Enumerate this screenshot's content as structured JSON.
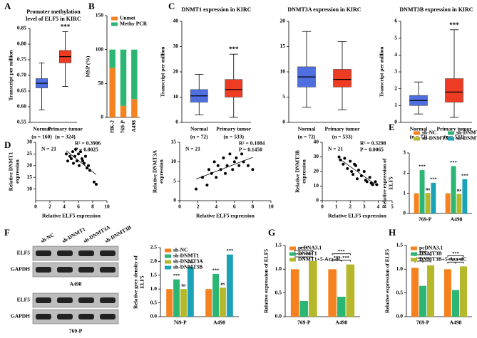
{
  "blots": {
    "panel": "F",
    "lanes": [
      "sh-NC",
      "sh-DNMT1",
      "sh-DNMT3A",
      "sh-DNMT3B"
    ],
    "rows": [
      "ELF5",
      "GAPDH"
    ],
    "cell_lines": [
      "A498",
      "769-P"
    ]
  },
  "chart_data": [
    {
      "panel": "A",
      "type": "box",
      "title": [
        "Promoter methylation",
        "level of ELF5 in KIRC"
      ],
      "ylabel": "Transcript per million",
      "categories": [
        "Normal",
        "Primary tumor"
      ],
      "category_notes": [
        "(n = 160)",
        "(n = 324)"
      ],
      "colors": [
        "#4f6fe0",
        "#ee3b24"
      ],
      "stats": [
        [
          0.59,
          0.66,
          0.675,
          0.69,
          0.74
        ],
        [
          0.665,
          0.74,
          0.76,
          0.78,
          0.84
        ]
      ],
      "annotation": "***",
      "ylim": [
        0.55,
        0.85
      ],
      "yticks": [
        0.55,
        {
          "value": 0.6,
          "label": "0.60"
        },
        0.65,
        {
          "value": 0.7,
          "label": "0.70"
        },
        0.75,
        {
          "value": 0.8,
          "label": "0.80"
        },
        0.85
      ]
    },
    {
      "panel": "B",
      "type": "stacked",
      "ylabel": "MSP (%)",
      "categories": [
        "HK-2",
        "769-P",
        "A498"
      ],
      "legend": "top",
      "series": [
        {
          "name": "Unmet",
          "color": "#f5821f",
          "values": [
            73,
            17,
            27
          ]
        },
        {
          "name": "Methy PCR",
          "color": "#2bb673",
          "values": [
            27,
            83,
            73
          ]
        }
      ],
      "ylim": [
        0,
        150
      ],
      "yticks": [
        0,
        50,
        100,
        150
      ]
    },
    {
      "panel": "C",
      "type": "box",
      "title": "DNMT1 expression in KIRC",
      "ylabel": "Transcript per million",
      "categories": [
        "Normal",
        "Primary tumor"
      ],
      "category_notes": [
        "(n = 72)",
        "(n = 533)"
      ],
      "colors": [
        "#4f6fe0",
        "#ee3b24"
      ],
      "stats": [
        [
          3,
          8,
          10.5,
          13,
          19
        ],
        [
          2,
          10,
          13,
          17,
          27
        ]
      ],
      "annotation": "***",
      "ylim": [
        0,
        40
      ],
      "yticks": [
        0,
        10,
        20,
        30,
        40
      ]
    },
    {
      "type": "box",
      "title": "DNMT3A expression in KIRC",
      "categories": [
        "Normal",
        "Primary tumor"
      ],
      "category_notes": [
        "(n = 72)",
        "(n = 533)"
      ],
      "colors": [
        "#4f6fe0",
        "#ee3b24"
      ],
      "stats": [
        [
          3,
          7,
          9,
          11,
          18
        ],
        [
          2.5,
          7,
          8.5,
          10.5,
          16
        ]
      ],
      "ylim": [
        0,
        20
      ],
      "yticks": [
        0,
        5,
        10,
        15,
        20
      ]
    },
    {
      "type": "box",
      "title": "DNMT3B expression in KIRC",
      "ylabel": "Transcript per million",
      "categories": [
        "Normal",
        "Primary tumor"
      ],
      "category_notes": [
        "(n = 72)",
        "(n = 533)"
      ],
      "colors": [
        "#4f6fe0",
        "#ee3b24"
      ],
      "stats": [
        [
          0.5,
          1.0,
          1.3,
          1.6,
          2.4
        ],
        [
          0.3,
          1.2,
          1.8,
          2.6,
          5.5
        ]
      ],
      "annotation": "***",
      "ylim": [
        0,
        6
      ],
      "yticks": [
        0,
        1,
        2,
        3,
        4,
        5,
        6
      ]
    },
    {
      "panel": "D",
      "type": "scatter",
      "ylabel": [
        "Relative DNMT1",
        "expression"
      ],
      "xlabel": "Relative ELF5 expression",
      "annotations": [
        "N = 21",
        "R² = 0.3906",
        "P = 0.0025"
      ],
      "x": [
        4.3,
        4.5,
        4.8,
        5.0,
        5.2,
        5.3,
        5.5,
        5.6,
        5.8,
        6.0,
        6.1,
        6.3,
        6.5,
        6.6,
        6.8,
        7.0,
        7.2,
        7.4,
        7.6,
        8.2,
        8.5
      ],
      "y": [
        25,
        22,
        24,
        23,
        26,
        21,
        24,
        27,
        22,
        25,
        20,
        26,
        23,
        22,
        21,
        24,
        19,
        20,
        18,
        13,
        12
      ],
      "xlim": [
        0,
        10
      ],
      "xticks": [
        0,
        2,
        4,
        6,
        8,
        10
      ],
      "ylim": [
        5,
        30
      ],
      "yticks": [
        10,
        15,
        20,
        25,
        30
      ]
    },
    {
      "type": "scatter",
      "ylabel": [
        "Relative DNMT3A",
        "expression"
      ],
      "xlabel": "Relative ELF5 expression",
      "annotations": [
        "N = 21",
        "R² = 0.1084",
        "P = 0.1450"
      ],
      "x": [
        1.8,
        2.5,
        3.0,
        3.2,
        3.5,
        3.8,
        4.0,
        4.2,
        4.5,
        4.8,
        5.0,
        5.2,
        5.5,
        5.8,
        6.0,
        6.2,
        6.5,
        6.8,
        7.0,
        7.5,
        8.0
      ],
      "y": [
        3,
        6,
        4,
        8,
        7,
        10,
        6,
        9,
        8,
        11,
        7,
        9,
        12,
        8,
        10,
        11,
        9,
        12,
        10,
        9,
        8
      ],
      "xlim": [
        0,
        10
      ],
      "xticks": [
        0,
        2,
        4,
        6,
        8,
        10
      ],
      "ylim": [
        0,
        15
      ],
      "yticks": [
        0,
        5,
        10,
        15
      ]
    },
    {
      "type": "scatter",
      "ylabel": [
        "Relative DNMT3B",
        "expression"
      ],
      "xlabel": "Relative ELF5 expression",
      "annotations": [
        "N = 21",
        "R² = 0.3298",
        "P = 0.0065"
      ],
      "x": [
        1.2,
        1.3,
        1.5,
        1.6,
        1.8,
        2.0,
        2.1,
        2.2,
        2.4,
        2.5,
        2.6,
        2.8,
        3.0,
        3.1,
        3.2,
        3.4,
        3.5,
        3.6,
        3.8,
        3.9,
        2.3
      ],
      "y": [
        30,
        28,
        25,
        29,
        22,
        27,
        20,
        18,
        24,
        15,
        21,
        17,
        20,
        14,
        13,
        16,
        12,
        11,
        13,
        11,
        25
      ],
      "xlim": [
        0,
        5
      ],
      "xticks": [
        0,
        1,
        2,
        3,
        4,
        5
      ],
      "ylim": [
        0,
        40
      ],
      "yticks": [
        0,
        10,
        20,
        30,
        40
      ]
    },
    {
      "panel": "E",
      "type": "bar",
      "ylabel": [
        "Relative expression of",
        "ELF5"
      ],
      "categories": [
        "769-P",
        "A498"
      ],
      "legend": "above",
      "legend_columns": 2,
      "series": [
        {
          "name": "sh-NC",
          "color": "#f5821f",
          "values": [
            1.0,
            1.0
          ]
        },
        {
          "name": "sh-DNMT1",
          "color": "#2bb673",
          "values": [
            2.15,
            2.35
          ],
          "annotations": [
            "***",
            "***"
          ]
        },
        {
          "name": "sh-DNMT3A",
          "color": "#b5b82a",
          "values": [
            1.02,
            0.97
          ],
          "annotations": [
            "ns",
            "ns"
          ]
        },
        {
          "name": "sh-DNMT3B",
          "color": "#1aa3b8",
          "values": [
            1.52,
            1.7
          ],
          "annotations": [
            "***",
            "***"
          ]
        }
      ],
      "ylim": [
        0,
        3
      ],
      "yticks": [
        0,
        1,
        2,
        3
      ]
    },
    {
      "type": "bar",
      "ylabel": [
        "Relative grey density of",
        "ELF5"
      ],
      "categories": [
        "769-P",
        "A498"
      ],
      "legend": "top",
      "series": [
        {
          "name": "sh-NC",
          "color": "#f5821f",
          "values": [
            1.0,
            1.0
          ]
        },
        {
          "name": "sh-DNMT1",
          "color": "#2bb673",
          "values": [
            1.35,
            1.55
          ],
          "annotations": [
            "***",
            "***"
          ]
        },
        {
          "name": "sh-DNMT3A",
          "color": "#b5b82a",
          "values": [
            1.0,
            1.05
          ],
          "annotations": [
            "ns",
            "ns"
          ]
        },
        {
          "name": "sh-DNMT3B",
          "color": "#1aa3b8",
          "values": [
            1.8,
            2.25
          ],
          "annotations": [
            "***",
            "***"
          ]
        }
      ],
      "ylim": [
        0,
        2.5
      ],
      "yticks": [
        {
          "value": 0,
          "label": "0.0"
        },
        0.5,
        {
          "value": 1,
          "label": "1.0"
        },
        1.5,
        {
          "value": 2,
          "label": "2.0"
        },
        2.5
      ]
    },
    {
      "panel": "G",
      "type": "bar",
      "ylabel": "Relative expression of ELF5",
      "categories": [
        "769-P",
        "A498"
      ],
      "legend": "top",
      "series": [
        {
          "name": "pcDNA3.1",
          "color": "#f5821f",
          "values": [
            1.0,
            1.0
          ]
        },
        {
          "name": "DNMT1",
          "color": "#2bb673",
          "values": [
            0.33,
            0.42
          ]
        },
        {
          "name": "DNMT1+5-Aza-dC",
          "color": "#b5b82a",
          "values": [
            1.17,
            1.1
          ]
        }
      ],
      "brackets": [
        [
          "***",
          "***",
          "***"
        ],
        [
          "***",
          "***",
          "***"
        ]
      ],
      "ylim": [
        0,
        1.5
      ],
      "yticks": [
        {
          "value": 0,
          "label": "0.0"
        },
        0.5,
        {
          "value": 1,
          "label": "1.0"
        },
        1.5
      ]
    },
    {
      "panel": "H",
      "type": "bar",
      "ylabel": "Relative expression of  ELF5",
      "categories": [
        "769-P",
        "A498"
      ],
      "legend": "top",
      "series": [
        {
          "name": "pcDNA3.1",
          "color": "#f5821f",
          "values": [
            1.03,
            1.0
          ]
        },
        {
          "name": "DNMT3B",
          "color": "#2bb673",
          "values": [
            0.65,
            0.56
          ]
        },
        {
          "name": "DNMT3B+5-Aza-dC",
          "color": "#b5b82a",
          "values": [
            1.08,
            1.06
          ]
        }
      ],
      "brackets": [
        [
          "***",
          "***",
          "***"
        ],
        [
          "***",
          "***",
          "***"
        ]
      ],
      "ylim": [
        0,
        1.5
      ],
      "yticks": [
        {
          "value": 0,
          "label": "0.0"
        },
        0.5,
        {
          "value": 1,
          "label": "1.0"
        },
        1.5
      ]
    }
  ]
}
